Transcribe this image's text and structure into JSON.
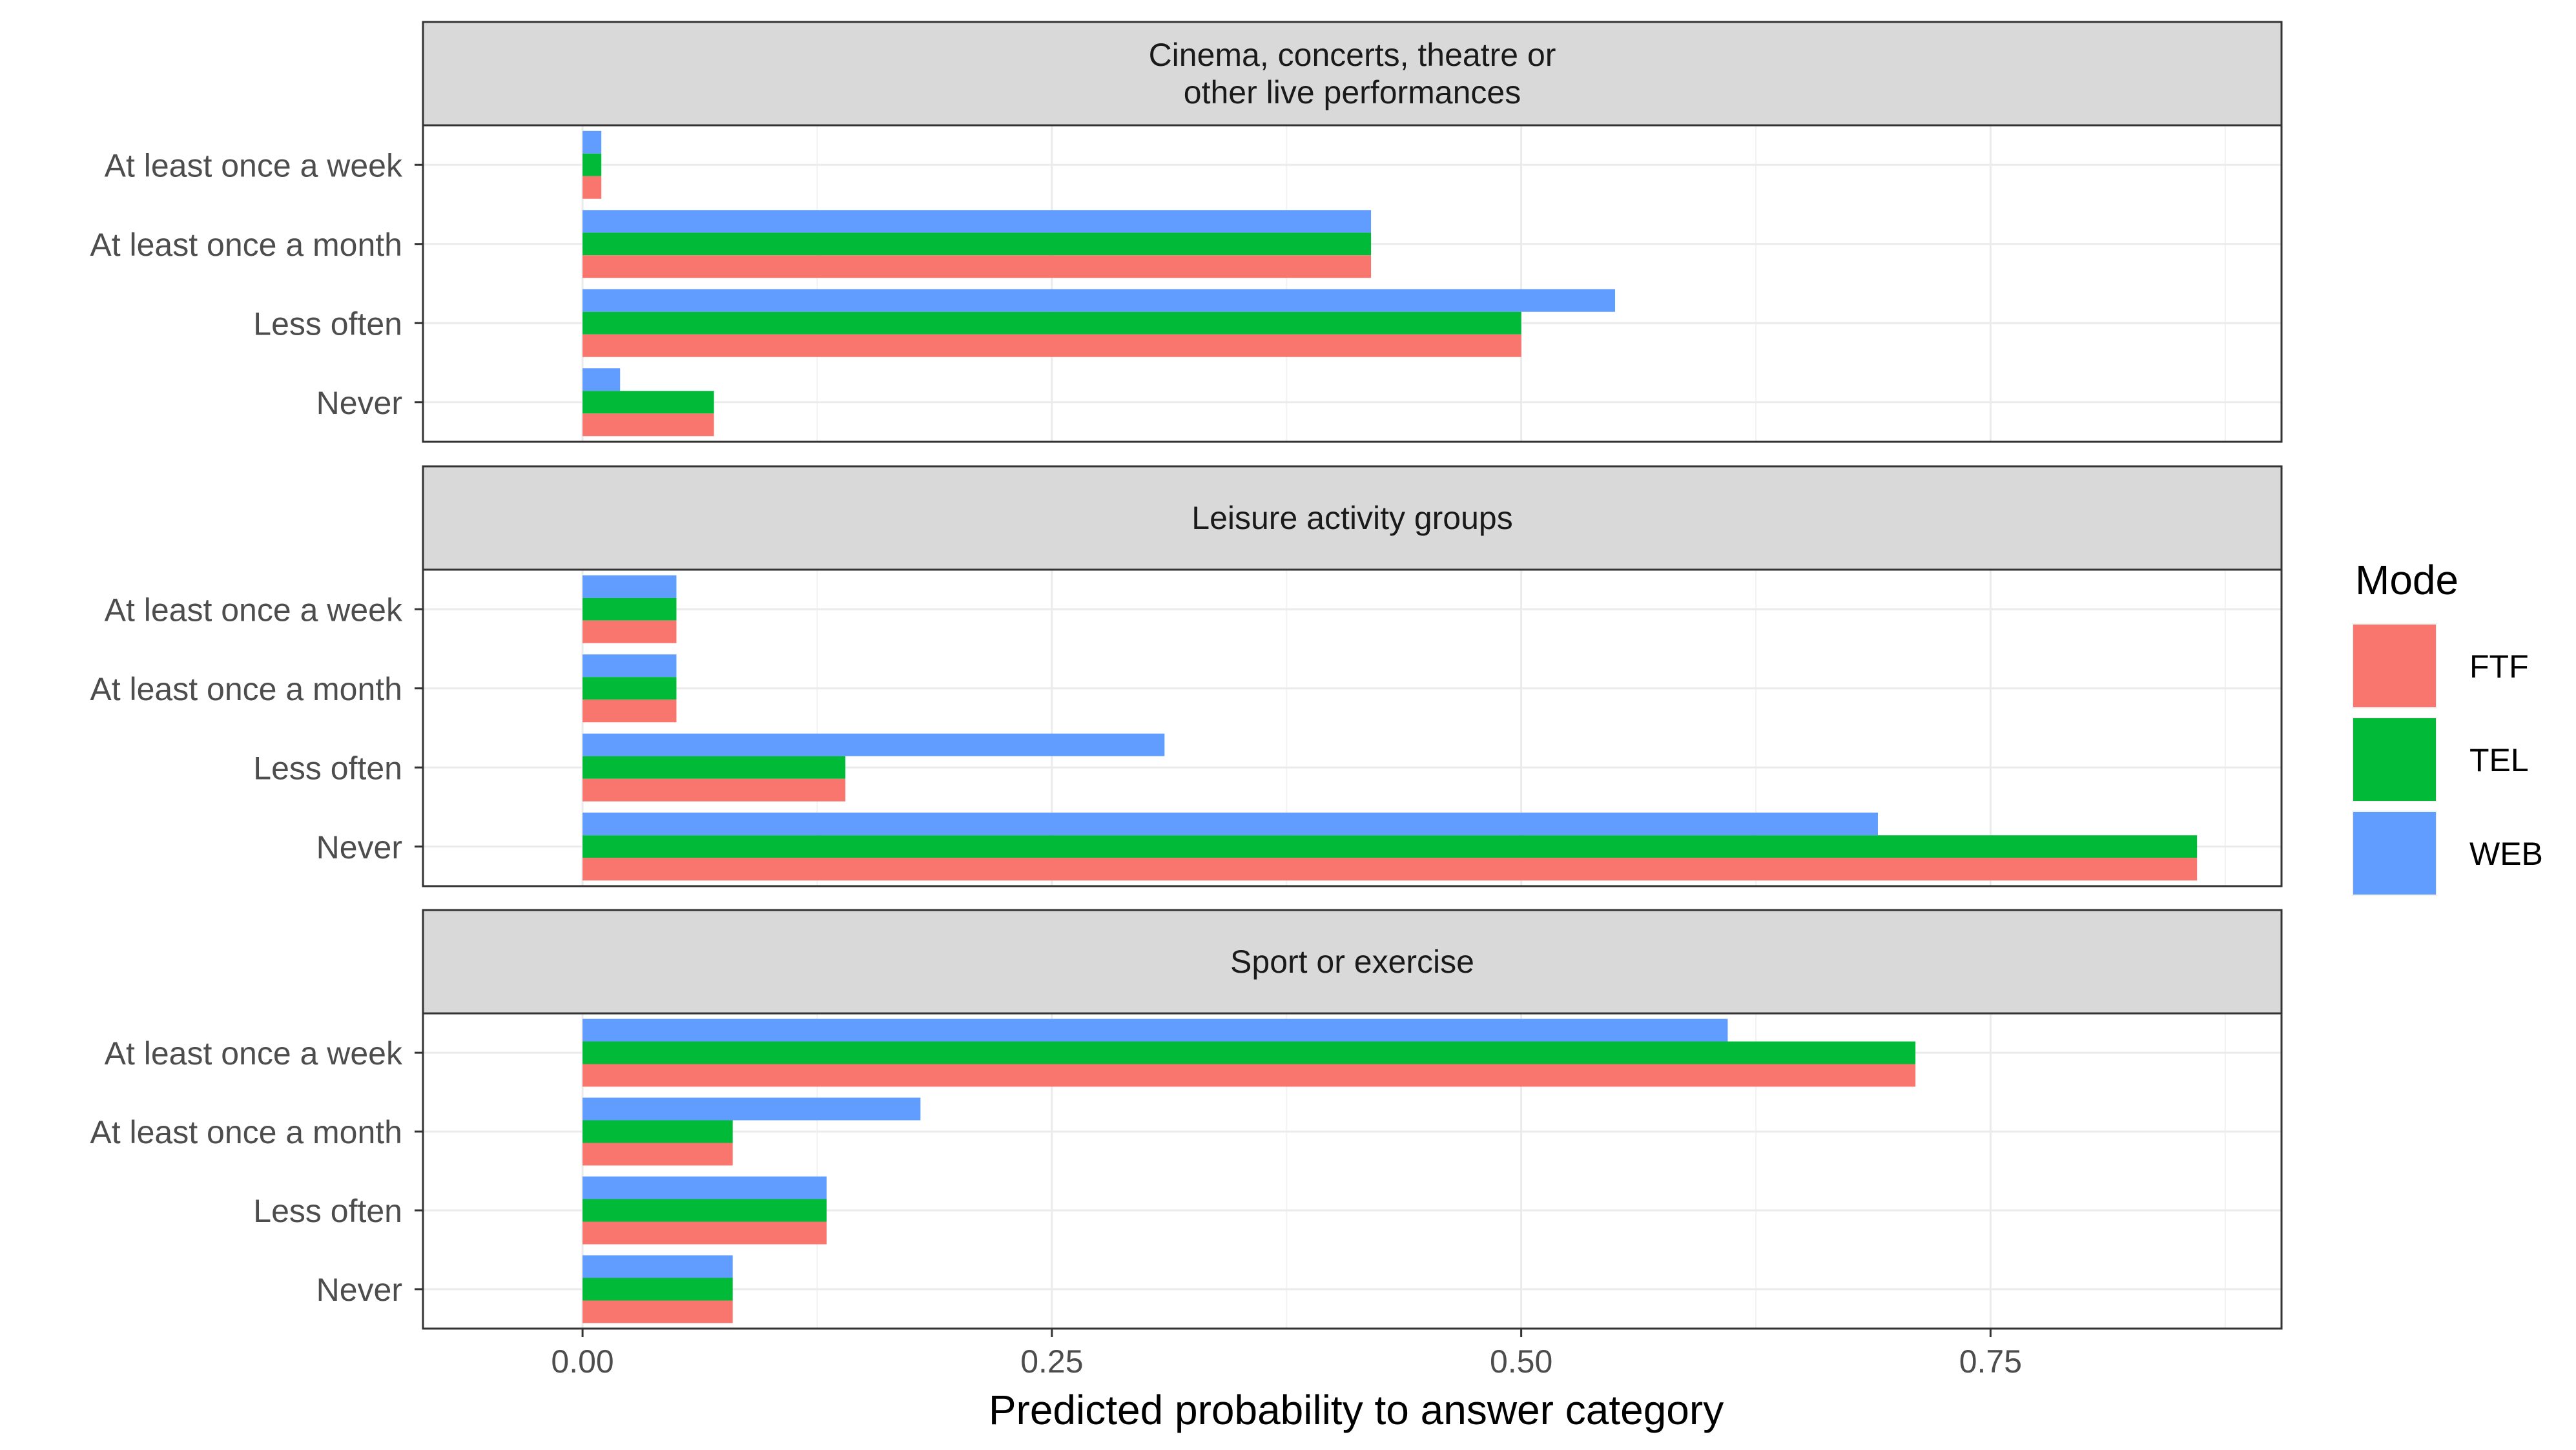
{
  "chart_data": {
    "type": "bar",
    "orientation": "horizontal",
    "xlabel": "Predicted probability to answer category",
    "xlim": [
      -0.085,
      0.905
    ],
    "x_ticks": [
      "0.00",
      "0.25",
      "0.50",
      "0.75"
    ],
    "x_tick_values": [
      0,
      0.25,
      0.5,
      0.75
    ],
    "grid": true,
    "legend": {
      "title": "Mode",
      "position": "right",
      "entries": [
        {
          "name": "FTF",
          "color": "#F8766D"
        },
        {
          "name": "TEL",
          "color": "#00BA38"
        },
        {
          "name": "WEB",
          "color": "#619CFF"
        }
      ]
    },
    "categories": [
      "At least once a week",
      "At least once a month",
      "Less often",
      "Never"
    ],
    "panels": [
      {
        "title_lines": [
          "Cinema, concerts, theatre or",
          "other live performances"
        ],
        "series": [
          {
            "name": "FTF",
            "values": [
              0.01,
              0.42,
              0.5,
              0.07
            ]
          },
          {
            "name": "TEL",
            "values": [
              0.01,
              0.42,
              0.5,
              0.07
            ]
          },
          {
            "name": "WEB",
            "values": [
              0.01,
              0.42,
              0.55,
              0.02
            ]
          }
        ]
      },
      {
        "title_lines": [
          "Leisure activity groups"
        ],
        "series": [
          {
            "name": "FTF",
            "values": [
              0.05,
              0.05,
              0.14,
              0.86
            ]
          },
          {
            "name": "TEL",
            "values": [
              0.05,
              0.05,
              0.14,
              0.86
            ]
          },
          {
            "name": "WEB",
            "values": [
              0.05,
              0.05,
              0.31,
              0.69
            ]
          }
        ]
      },
      {
        "title_lines": [
          "Sport or exercise"
        ],
        "series": [
          {
            "name": "FTF",
            "values": [
              0.71,
              0.08,
              0.13,
              0.08
            ]
          },
          {
            "name": "TEL",
            "values": [
              0.71,
              0.08,
              0.13,
              0.08
            ]
          },
          {
            "name": "WEB",
            "values": [
              0.61,
              0.18,
              0.13,
              0.08
            ]
          }
        ]
      }
    ]
  }
}
